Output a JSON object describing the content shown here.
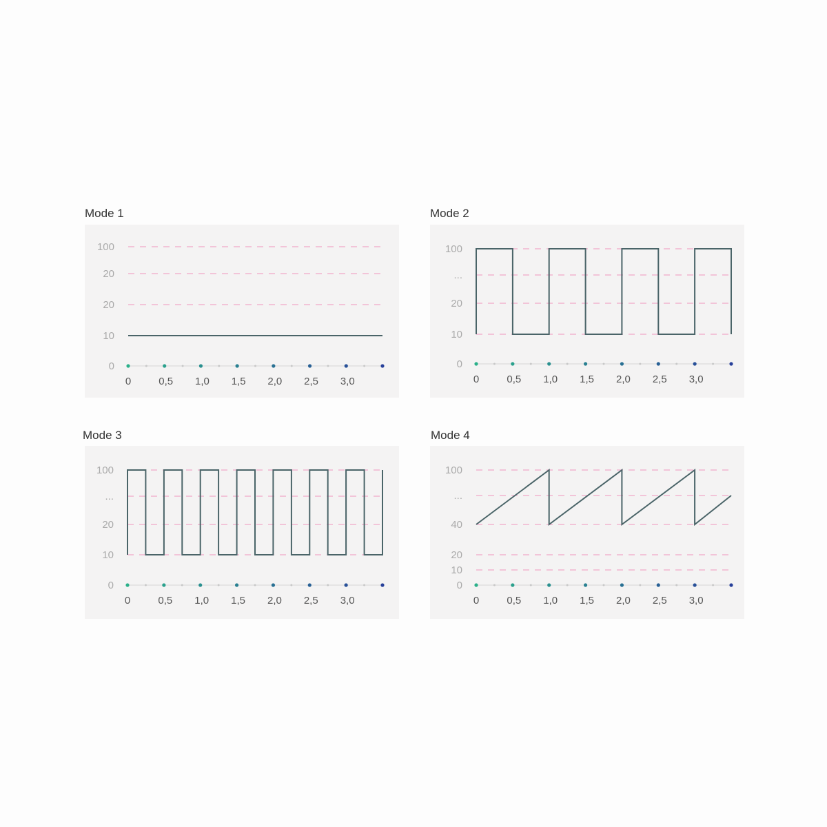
{
  "colors": {
    "line": "#4a6468",
    "grid": "#f0a8c8",
    "axis": "#d6d6d6",
    "dot_start": "#2bb08a",
    "dot_end": "#27409a",
    "minor_dot": "#c8c8c8",
    "panel": "#f4f3f3",
    "ytick": "#aaaaaa",
    "xtick": "#555555"
  },
  "chart_data": [
    {
      "title": "Mode 1",
      "type": "line",
      "grid": "dashed horizontal",
      "yticks": [
        "100",
        "20",
        "20",
        "10",
        "0"
      ],
      "xticks": [
        "0",
        "0,5",
        "1,0",
        "1,5",
        "2,0",
        "2,5",
        "3,0"
      ],
      "xlim": [
        0,
        3.5
      ],
      "series": [
        {
          "x": [
            0,
            3.5
          ],
          "y": [
            10,
            10
          ]
        }
      ]
    },
    {
      "title": "Mode 2",
      "type": "line",
      "grid": "dashed horizontal",
      "yticks": [
        "100",
        "...",
        "20",
        "10",
        "0"
      ],
      "xticks": [
        "0",
        "0,5",
        "1,0",
        "1,5",
        "2,0",
        "2,5",
        "3,0"
      ],
      "xlim": [
        0,
        3.5
      ],
      "series": [
        {
          "x": [
            0,
            0,
            0.5,
            0.5,
            1.0,
            1.0,
            1.5,
            1.5,
            2.0,
            2.0,
            2.5,
            2.5,
            3.0,
            3.0,
            3.5,
            3.5
          ],
          "y": [
            10,
            100,
            100,
            10,
            10,
            100,
            100,
            10,
            10,
            100,
            100,
            10,
            10,
            100,
            100,
            10
          ]
        }
      ]
    },
    {
      "title": "Mode 3",
      "type": "line",
      "grid": "dashed horizontal",
      "yticks": [
        "100",
        "...",
        "20",
        "10",
        "0"
      ],
      "xticks": [
        "0",
        "0,5",
        "1,0",
        "1,5",
        "2,0",
        "2,5",
        "3,0"
      ],
      "xlim": [
        0,
        3.5
      ],
      "series": [
        {
          "x": [
            0,
            0,
            0.25,
            0.25,
            0.5,
            0.5,
            0.75,
            0.75,
            1.0,
            1.0,
            1.25,
            1.25,
            1.5,
            1.5,
            1.75,
            1.75,
            2.0,
            2.0,
            2.25,
            2.25,
            2.5,
            2.5,
            2.75,
            2.75,
            3.0,
            3.0,
            3.25,
            3.25,
            3.5,
            3.5
          ],
          "y": [
            10,
            100,
            100,
            10,
            10,
            100,
            100,
            10,
            10,
            100,
            100,
            10,
            10,
            100,
            100,
            10,
            10,
            100,
            100,
            10,
            10,
            100,
            100,
            10,
            10,
            100,
            100,
            10,
            10,
            100
          ]
        }
      ]
    },
    {
      "title": "Mode 4",
      "type": "line",
      "grid": "dashed horizontal",
      "yticks": [
        "100",
        "...",
        "40",
        "20",
        "10",
        "0"
      ],
      "xticks": [
        "0",
        "0,5",
        "1,0",
        "1,5",
        "2,0",
        "2,5",
        "3,0"
      ],
      "xlim": [
        0,
        3.5
      ],
      "series": [
        {
          "x": [
            0,
            1.0,
            1.0,
            2.0,
            2.0,
            3.0,
            3.0,
            3.5
          ],
          "y": [
            40,
            100,
            40,
            100,
            40,
            100,
            40,
            70
          ]
        }
      ]
    }
  ]
}
